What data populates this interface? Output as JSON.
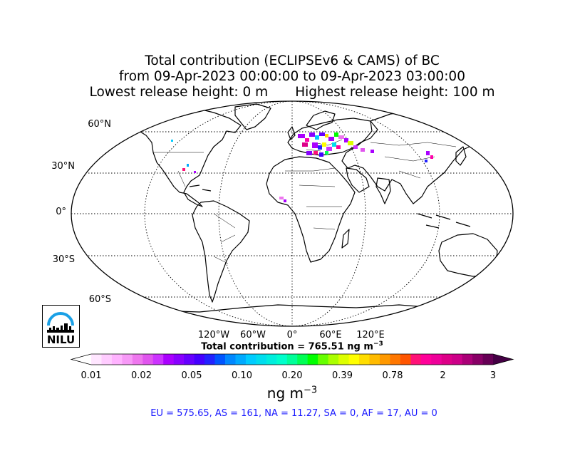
{
  "title": {
    "line1": "Total contribution (ECLIPSEv6 & CAMS) of BC",
    "line2": "from 09-Apr-2023 00:00:00 to 09-Apr-2023 03:00:00",
    "line3_left": "Lowest release height: 0 m",
    "line3_right": "Highest release height: 100 m"
  },
  "map": {
    "projection": "Robinson",
    "lat_labels": [
      "60°N",
      "30°N",
      "0°",
      "30°S",
      "60°S"
    ],
    "lon_labels": [
      "120°W",
      "60°W",
      "0°",
      "60°E",
      "120°E"
    ],
    "logo_text": "NILU"
  },
  "total": {
    "prefix": "Total contribution = 765.51 ng m",
    "exp": "−3"
  },
  "colorbar": {
    "tick_labels": [
      "0.01",
      "0.02",
      "0.05",
      "0.10",
      "0.20",
      "0.39",
      "0.78",
      "2",
      "3"
    ],
    "unit_base": "ng m",
    "unit_exp": "−3",
    "colors": [
      "#ffe6ff",
      "#ffccff",
      "#ffb3ff",
      "#f799f7",
      "#ee77ee",
      "#e055ee",
      "#cc33ff",
      "#aa00ff",
      "#8800ff",
      "#6600ff",
      "#4400ff",
      "#2222ff",
      "#0055ff",
      "#0088ff",
      "#00aaff",
      "#00ccff",
      "#00ddee",
      "#00eedd",
      "#00ffcc",
      "#00ff99",
      "#00ff55",
      "#00ff00",
      "#66ff00",
      "#aaff00",
      "#ddff00",
      "#ffff00",
      "#ffdd00",
      "#ffbb00",
      "#ff9900",
      "#ff7700",
      "#ff5500",
      "#ff1177",
      "#ff0099",
      "#ee0099",
      "#dd0088",
      "#cc0088",
      "#aa0077",
      "#880066",
      "#660055"
    ]
  },
  "regions_text": "EU = 575.65,  AS = 161,  NA = 11.27,  SA = 0,  AF = 17,  AU = 0"
}
